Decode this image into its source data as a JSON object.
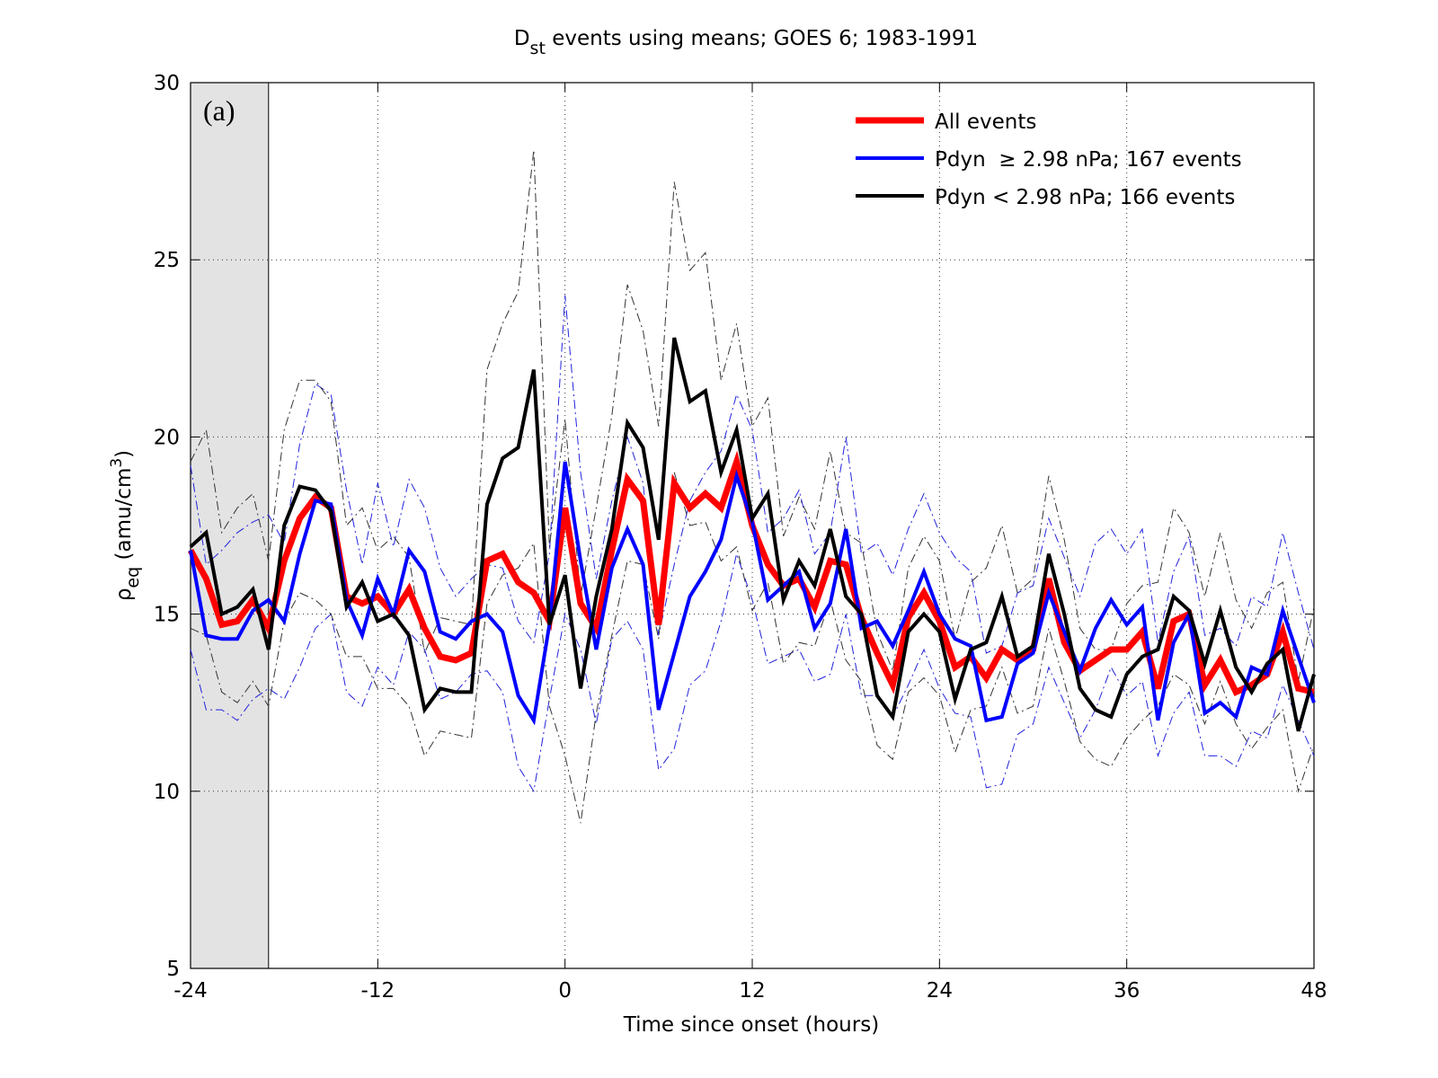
{
  "chart_data": {
    "type": "line",
    "title_main": "D",
    "title_sub": "st",
    "title_rest": " events using means; GOES 6; 1983-1991",
    "x_label": "Time since onset (hours)",
    "y_label_main": "ρ",
    "y_label_sub": "eq",
    "y_label_rest": " (amu/cm",
    "y_label_sup": "3",
    "y_label_end": ")",
    "annotation": "(a)",
    "shaded_region": [
      -24,
      -19
    ],
    "xlim": [
      -24,
      48
    ],
    "xticks": [
      -24,
      -12,
      0,
      12,
      24,
      36,
      48
    ],
    "ylim": [
      5,
      30
    ],
    "yticks": [
      5,
      10,
      15,
      20,
      25,
      30
    ],
    "grid": true,
    "legend_position": "upper-right",
    "x": [
      -24,
      -23,
      -22,
      -21,
      -20,
      -19,
      -18,
      -17,
      -16,
      -15,
      -14,
      -13,
      -12,
      -11,
      -10,
      -9,
      -8,
      -7,
      -6,
      -5,
      -4,
      -3,
      -2,
      -1,
      0,
      1,
      2,
      3,
      4,
      5,
      6,
      7,
      8,
      9,
      10,
      11,
      12,
      13,
      14,
      15,
      16,
      17,
      18,
      19,
      20,
      21,
      22,
      23,
      24,
      25,
      26,
      27,
      28,
      29,
      30,
      31,
      32,
      33,
      34,
      35,
      36,
      37,
      38,
      39,
      40,
      41,
      42,
      43,
      44,
      45,
      46,
      47,
      48
    ],
    "series": [
      {
        "color": "#2222dd",
        "line_style": "dash-dot",
        "values": [
          19.2,
          16.4,
          16.8,
          17.3,
          17.6,
          17.8,
          17.0,
          19.8,
          21.5,
          21.2,
          18.5,
          16.4,
          18.7,
          16.9,
          18.8,
          18.0,
          16.3,
          15.5,
          16.0,
          16.4,
          16.3,
          14.8,
          14.2,
          16.7,
          24.0,
          19.0,
          16.0,
          18.2,
          20.0,
          18.7,
          14.4,
          16.4,
          18.2,
          19.0,
          19.6,
          21.2,
          20.2,
          17.3,
          17.7,
          18.5,
          16.7,
          17.3,
          20.0,
          16.7,
          17.0,
          16.1,
          17.4,
          18.4,
          17.3,
          16.6,
          16.2,
          13.9,
          14.1,
          15.6,
          15.8,
          17.7,
          16.6,
          15.5,
          17.0,
          17.4,
          16.7,
          17.4,
          14.2,
          16.2,
          17.2,
          14.4,
          14.6,
          14.1,
          15.5,
          15.2,
          17.3,
          15.6,
          14.0
        ]
      },
      {
        "color": "#2222dd",
        "line_style": "dash-dot",
        "values": [
          14.0,
          12.3,
          12.3,
          12.0,
          12.6,
          12.9,
          12.6,
          13.5,
          14.6,
          15.0,
          12.8,
          12.4,
          13.5,
          13.0,
          14.5,
          14.0,
          12.6,
          12.8,
          13.3,
          13.4,
          12.8,
          10.7,
          10.0,
          12.6,
          15.0,
          14.0,
          11.9,
          14.3,
          14.8,
          14.0,
          10.6,
          11.2,
          13.0,
          13.4,
          14.8,
          16.7,
          15.4,
          13.6,
          13.8,
          14.0,
          13.1,
          13.3,
          15.0,
          12.7,
          12.7,
          12.1,
          13.0,
          14.0,
          12.9,
          12.2,
          12.1,
          10.1,
          10.2,
          11.6,
          11.9,
          13.5,
          12.5,
          11.5,
          12.3,
          13.5,
          12.7,
          13.1,
          11.0,
          12.2,
          12.8,
          11.0,
          11.0,
          10.7,
          11.7,
          11.5,
          13.0,
          12.0,
          11.0
        ]
      },
      {
        "color": "#333333",
        "line_style": "dash-dot",
        "values": [
          19.3,
          20.2,
          17.3,
          18.0,
          18.4,
          16.5,
          20.2,
          21.6,
          21.6,
          21.0,
          17.5,
          18.0,
          16.8,
          17.2,
          16.6,
          13.9,
          14.9,
          14.8,
          14.7,
          21.9,
          23.2,
          24.1,
          28.1,
          16.9,
          20.5,
          15.5,
          18.0,
          20.6,
          24.3,
          23.0,
          20.3,
          27.2,
          24.7,
          25.2,
          21.6,
          23.2,
          20.3,
          21.1,
          17.2,
          18.3,
          17.4,
          19.6,
          17.3,
          17.0,
          14.5,
          13.4,
          16.3,
          17.2,
          16.5,
          14.3,
          15.9,
          16.3,
          17.5,
          15.6,
          16.0,
          18.9,
          17.1,
          14.6,
          14.0,
          14.0,
          15.3,
          15.8,
          15.9,
          18.0,
          17.3,
          15.5,
          17.3,
          15.4,
          14.6,
          15.6,
          15.9,
          13.1,
          15.2
        ]
      },
      {
        "color": "#333333",
        "line_style": "dash-dot",
        "values": [
          14.6,
          14.4,
          12.8,
          12.5,
          13.1,
          12.4,
          14.8,
          15.6,
          15.4,
          15.0,
          13.8,
          13.8,
          12.9,
          12.9,
          12.4,
          11.0,
          11.7,
          11.6,
          11.5,
          15.3,
          16.1,
          16.3,
          17.0,
          12.4,
          11.0,
          9.1,
          12.2,
          14.4,
          16.5,
          16.4,
          14.3,
          19.0,
          17.5,
          17.6,
          16.5,
          16.9,
          15.1,
          15.9,
          13.6,
          14.2,
          14.1,
          15.4,
          13.7,
          13.1,
          11.3,
          10.9,
          12.8,
          13.2,
          12.7,
          11.1,
          12.3,
          12.4,
          13.5,
          12.2,
          12.4,
          14.6,
          13.1,
          11.4,
          10.9,
          10.7,
          11.5,
          12.0,
          12.4,
          13.3,
          13.0,
          11.9,
          13.1,
          11.9,
          11.2,
          11.8,
          12.3,
          10.0,
          11.3
        ]
      },
      {
        "name": "All events",
        "color": "#ff0000",
        "line_style": "solid-thick",
        "values": [
          16.8,
          16.0,
          14.7,
          14.8,
          15.4,
          14.6,
          16.5,
          17.7,
          18.3,
          18.0,
          15.5,
          15.3,
          15.5,
          15.0,
          15.7,
          14.6,
          13.8,
          13.7,
          13.9,
          16.5,
          16.7,
          15.9,
          15.6,
          14.8,
          18.0,
          15.3,
          14.6,
          16.8,
          18.8,
          18.2,
          14.7,
          18.7,
          18.0,
          18.4,
          18.0,
          19.3,
          17.5,
          16.4,
          15.8,
          16.0,
          15.2,
          16.5,
          16.4,
          14.9,
          13.9,
          13.0,
          14.9,
          15.6,
          14.8,
          13.5,
          13.8,
          13.2,
          14.0,
          13.7,
          14.0,
          16.0,
          14.2,
          13.4,
          13.7,
          14.0,
          14.0,
          14.5,
          12.9,
          14.8,
          15.0,
          13.0,
          13.7,
          12.8,
          13.0,
          13.3,
          14.5,
          12.9,
          12.8
        ]
      },
      {
        "name": "Pdyn  ≥ 2.98 nPa; 167 events",
        "color": "#0000ff",
        "line_style": "solid",
        "values": [
          16.8,
          14.4,
          14.3,
          14.3,
          15.1,
          15.4,
          14.8,
          16.7,
          18.2,
          18.1,
          15.4,
          14.4,
          16.0,
          15.0,
          16.8,
          16.2,
          14.5,
          14.3,
          14.8,
          15.0,
          14.5,
          12.7,
          12.0,
          14.7,
          19.3,
          16.5,
          14.0,
          16.3,
          17.4,
          16.4,
          12.3,
          13.9,
          15.5,
          16.2,
          17.1,
          18.9,
          17.6,
          15.4,
          15.8,
          16.2,
          14.6,
          15.3,
          17.4,
          14.6,
          14.8,
          14.1,
          15.1,
          16.2,
          15.0,
          14.3,
          14.1,
          12.0,
          12.1,
          13.6,
          13.9,
          15.6,
          14.5,
          13.4,
          14.6,
          15.4,
          14.7,
          15.2,
          12.0,
          14.2,
          15.0,
          12.2,
          12.5,
          12.1,
          13.5,
          13.3,
          15.1,
          13.8,
          12.5
        ]
      },
      {
        "name": "Pdyn < 2.98 nPa; 166 events",
        "color": "#000000",
        "line_style": "solid",
        "values": [
          16.9,
          17.3,
          15.0,
          15.2,
          15.7,
          14.0,
          17.5,
          18.6,
          18.5,
          17.9,
          15.2,
          15.9,
          14.8,
          15.0,
          14.4,
          12.3,
          12.9,
          12.8,
          12.8,
          18.1,
          19.4,
          19.7,
          21.9,
          14.7,
          16.1,
          12.9,
          15.5,
          17.4,
          20.4,
          19.7,
          17.1,
          22.8,
          21.0,
          21.3,
          19.0,
          20.2,
          17.7,
          18.4,
          15.4,
          16.5,
          15.8,
          17.4,
          15.5,
          15.0,
          12.7,
          12.1,
          14.5,
          15.0,
          14.5,
          12.6,
          14.0,
          14.2,
          15.5,
          13.8,
          14.1,
          16.7,
          15.0,
          12.9,
          12.3,
          12.1,
          13.3,
          13.8,
          14.0,
          15.5,
          15.1,
          13.6,
          15.1,
          13.5,
          12.8,
          13.6,
          14.0,
          11.7,
          13.3
        ]
      }
    ]
  }
}
